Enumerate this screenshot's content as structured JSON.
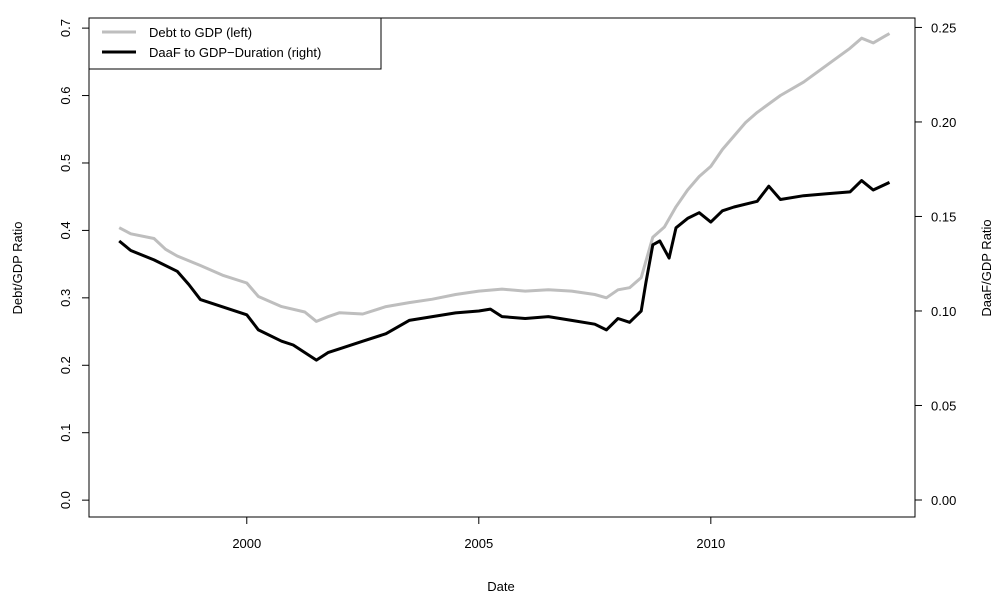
{
  "chart_data": {
    "type": "line",
    "xlabel": "Date",
    "ylabel_left": "Debt/GDP Ratio",
    "ylabel_right": "DaaF/GDP Ratio",
    "x_ticks": [
      "2000",
      "2005",
      "2010"
    ],
    "y_left_ticks": [
      "0.0",
      "0.1",
      "0.2",
      "0.3",
      "0.4",
      "0.5",
      "0.6",
      "0.7"
    ],
    "y_right_ticks": [
      "0.00",
      "0.05",
      "0.10",
      "0.15",
      "0.20",
      "0.25"
    ],
    "xlim": [
      1996.6,
      2014.4
    ],
    "ylim_left": [
      -0.025,
      0.715
    ],
    "ylim_right": [
      -0.009,
      0.255
    ],
    "legend_position": "top-left",
    "series": [
      {
        "name": "Debt to GDP (left)",
        "axis": "left",
        "color": "#bebebe",
        "points": [
          [
            1997.25,
            0.404
          ],
          [
            1997.5,
            0.395
          ],
          [
            1998.0,
            0.388
          ],
          [
            1998.25,
            0.372
          ],
          [
            1998.5,
            0.362
          ],
          [
            1999.0,
            0.348
          ],
          [
            1999.5,
            0.333
          ],
          [
            2000.0,
            0.322
          ],
          [
            2000.25,
            0.302
          ],
          [
            2000.75,
            0.287
          ],
          [
            2001.25,
            0.279
          ],
          [
            2001.5,
            0.265
          ],
          [
            2001.75,
            0.272
          ],
          [
            2002.0,
            0.278
          ],
          [
            2002.5,
            0.276
          ],
          [
            2003.0,
            0.287
          ],
          [
            2003.5,
            0.293
          ],
          [
            2004.0,
            0.298
          ],
          [
            2004.5,
            0.305
          ],
          [
            2005.0,
            0.31
          ],
          [
            2005.5,
            0.313
          ],
          [
            2006.0,
            0.31
          ],
          [
            2006.5,
            0.312
          ],
          [
            2007.0,
            0.31
          ],
          [
            2007.5,
            0.305
          ],
          [
            2007.75,
            0.3
          ],
          [
            2008.0,
            0.312
          ],
          [
            2008.25,
            0.315
          ],
          [
            2008.5,
            0.33
          ],
          [
            2008.75,
            0.39
          ],
          [
            2009.0,
            0.405
          ],
          [
            2009.25,
            0.435
          ],
          [
            2009.5,
            0.46
          ],
          [
            2009.75,
            0.48
          ],
          [
            2010.0,
            0.495
          ],
          [
            2010.25,
            0.52
          ],
          [
            2010.5,
            0.54
          ],
          [
            2010.75,
            0.56
          ],
          [
            2011.0,
            0.575
          ],
          [
            2011.5,
            0.6
          ],
          [
            2012.0,
            0.62
          ],
          [
            2012.5,
            0.645
          ],
          [
            2013.0,
            0.67
          ],
          [
            2013.25,
            0.685
          ],
          [
            2013.5,
            0.678
          ],
          [
            2013.75,
            0.688
          ],
          [
            2013.85,
            0.692
          ]
        ]
      },
      {
        "name": "DaaF to GDP−Duration (right)",
        "axis": "right",
        "color": "#000000",
        "points": [
          [
            1997.25,
            0.137
          ],
          [
            1997.5,
            0.132
          ],
          [
            1998.0,
            0.127
          ],
          [
            1998.5,
            0.121
          ],
          [
            1998.75,
            0.114
          ],
          [
            1999.0,
            0.106
          ],
          [
            1999.5,
            0.102
          ],
          [
            2000.0,
            0.098
          ],
          [
            2000.25,
            0.09
          ],
          [
            2000.75,
            0.084
          ],
          [
            2001.0,
            0.082
          ],
          [
            2001.5,
            0.074
          ],
          [
            2001.75,
            0.078
          ],
          [
            2002.0,
            0.08
          ],
          [
            2002.5,
            0.084
          ],
          [
            2003.0,
            0.088
          ],
          [
            2003.5,
            0.095
          ],
          [
            2004.0,
            0.097
          ],
          [
            2004.5,
            0.099
          ],
          [
            2005.0,
            0.1
          ],
          [
            2005.25,
            0.101
          ],
          [
            2005.5,
            0.097
          ],
          [
            2006.0,
            0.096
          ],
          [
            2006.5,
            0.097
          ],
          [
            2007.0,
            0.095
          ],
          [
            2007.5,
            0.093
          ],
          [
            2007.75,
            0.09
          ],
          [
            2008.0,
            0.096
          ],
          [
            2008.25,
            0.094
          ],
          [
            2008.5,
            0.1
          ],
          [
            2008.6,
            0.115
          ],
          [
            2008.75,
            0.135
          ],
          [
            2008.9,
            0.137
          ],
          [
            2009.1,
            0.128
          ],
          [
            2009.25,
            0.144
          ],
          [
            2009.5,
            0.149
          ],
          [
            2009.75,
            0.152
          ],
          [
            2010.0,
            0.147
          ],
          [
            2010.25,
            0.153
          ],
          [
            2010.5,
            0.155
          ],
          [
            2011.0,
            0.158
          ],
          [
            2011.25,
            0.166
          ],
          [
            2011.5,
            0.159
          ],
          [
            2012.0,
            0.161
          ],
          [
            2012.5,
            0.162
          ],
          [
            2013.0,
            0.163
          ],
          [
            2013.25,
            0.169
          ],
          [
            2013.5,
            0.164
          ],
          [
            2013.85,
            0.168
          ]
        ]
      }
    ]
  }
}
